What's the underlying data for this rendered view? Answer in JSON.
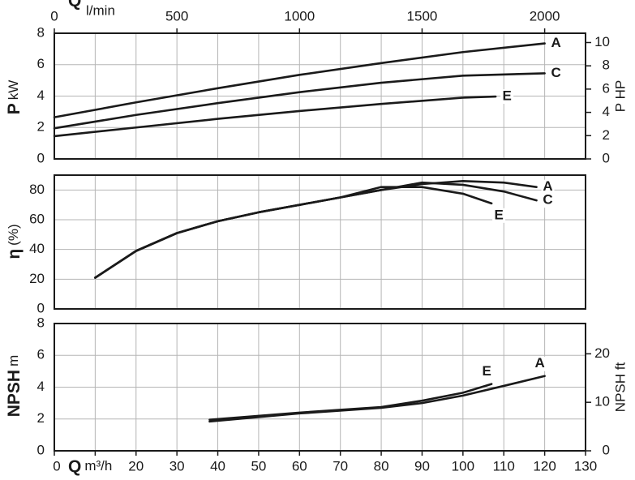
{
  "chart_data": [
    {
      "type": "line",
      "x2_label": "Q",
      "x2_unit": "l/min",
      "x2lim": [
        0,
        2166.7
      ],
      "x2ticks": [
        0,
        500,
        1000,
        1500,
        2000
      ],
      "y_label": "P",
      "y_unit": "kW",
      "ylim": [
        0,
        8
      ],
      "yticks": [
        0,
        2,
        4,
        6,
        8
      ],
      "y2_label": "P HP",
      "y2lim": [
        0,
        10.8
      ],
      "y2ticks": [
        0,
        2,
        4,
        6,
        8,
        10
      ],
      "xlim": [
        0,
        130
      ],
      "xticks": [
        10,
        20,
        30,
        40,
        50,
        60,
        70,
        80,
        90,
        100,
        110,
        120
      ],
      "grid": true,
      "series": [
        {
          "name": "A",
          "color": "#1a1a1a",
          "x": [
            0,
            20,
            40,
            60,
            80,
            100,
            120
          ],
          "values": [
            2.65,
            3.6,
            4.5,
            5.35,
            6.1,
            6.8,
            7.35
          ]
        },
        {
          "name": "C",
          "color": "#1a1a1a",
          "x": [
            0,
            20,
            40,
            60,
            80,
            100,
            120
          ],
          "values": [
            1.95,
            2.8,
            3.55,
            4.25,
            4.85,
            5.3,
            5.45
          ]
        },
        {
          "name": "E",
          "color": "#1a1a1a",
          "x": [
            0,
            20,
            40,
            60,
            80,
            100,
            108
          ],
          "values": [
            1.45,
            2.0,
            2.55,
            3.05,
            3.5,
            3.9,
            3.97
          ]
        }
      ]
    },
    {
      "type": "line",
      "y_label": "η",
      "y_unit": "(%)",
      "ylim": [
        0,
        90
      ],
      "yticks": [
        0,
        20,
        40,
        60,
        80
      ],
      "xlim": [
        0,
        130
      ],
      "xticks": [
        10,
        20,
        30,
        40,
        50,
        60,
        70,
        80,
        90,
        100,
        110,
        120
      ],
      "grid": true,
      "series": [
        {
          "name": "A",
          "color": "#1a1a1a",
          "x": [
            10,
            20,
            30,
            40,
            50,
            60,
            70,
            80,
            90,
            100,
            110,
            118
          ],
          "values": [
            21,
            39,
            51,
            59,
            65,
            70,
            75,
            80,
            84,
            86,
            85,
            82
          ]
        },
        {
          "name": "C",
          "color": "#1a1a1a",
          "x": [
            10,
            20,
            30,
            40,
            50,
            60,
            70,
            80,
            90,
            100,
            110,
            118
          ],
          "values": [
            21,
            39,
            51,
            59,
            65,
            70,
            75,
            80,
            85,
            83.5,
            79,
            73
          ]
        },
        {
          "name": "E",
          "color": "#1a1a1a",
          "x": [
            10,
            20,
            30,
            40,
            50,
            60,
            70,
            80,
            90,
            100,
            107
          ],
          "values": [
            21,
            39,
            51,
            59,
            65,
            70,
            75,
            82,
            82,
            77.5,
            71
          ]
        }
      ]
    },
    {
      "type": "line",
      "y_label": "NPSH",
      "y_unit": "m",
      "ylim": [
        0,
        8
      ],
      "yticks": [
        0,
        2,
        4,
        6,
        8
      ],
      "y2_label": "NPSH ft",
      "y2lim": [
        0,
        26.25
      ],
      "y2ticks": [
        0,
        10,
        20
      ],
      "x_label": "Q",
      "x_unit": "m³/h",
      "xlim": [
        0,
        130
      ],
      "xticks": [
        0,
        {
          "value": 10,
          "label": null
        },
        20,
        30,
        40,
        50,
        60,
        70,
        80,
        90,
        100,
        110,
        120,
        130
      ],
      "grid": true,
      "series": [
        {
          "name": "E",
          "color": "#1a1a1a",
          "x": [
            38,
            60,
            80,
            90,
            100,
            107
          ],
          "values": [
            1.95,
            2.4,
            2.75,
            3.15,
            3.65,
            4.2
          ]
        },
        {
          "name": "A",
          "color": "#1a1a1a",
          "x": [
            38,
            60,
            80,
            90,
            100,
            110,
            120
          ],
          "values": [
            1.84,
            2.35,
            2.7,
            3.0,
            3.47,
            4.08,
            4.7
          ]
        }
      ]
    }
  ]
}
